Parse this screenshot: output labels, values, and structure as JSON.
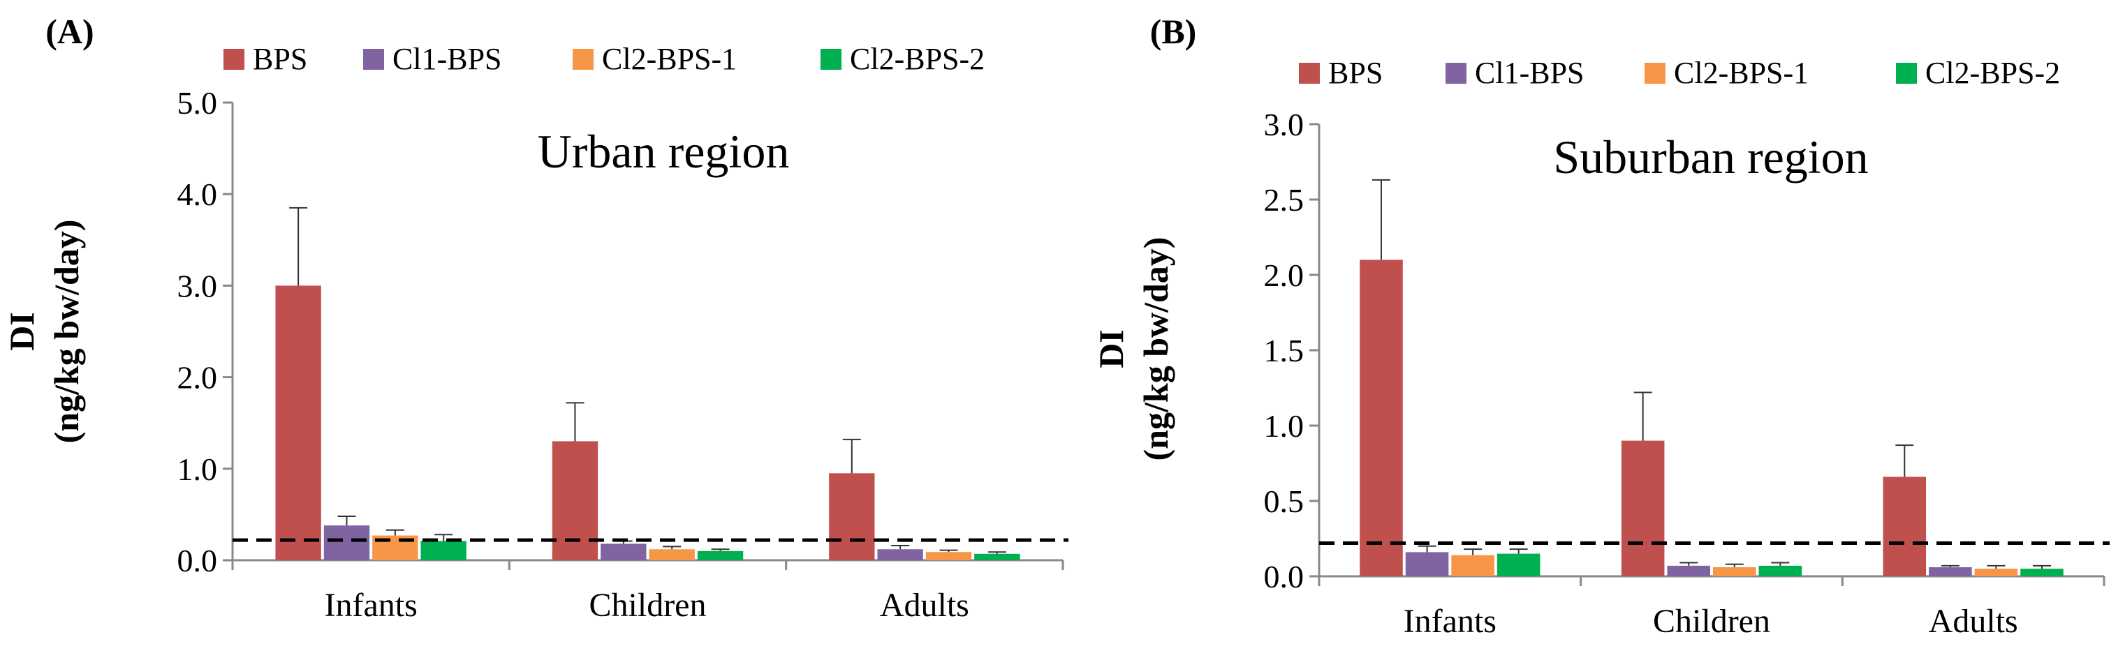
{
  "chart_data": [
    {
      "type": "bar",
      "panel_label": "(A)",
      "title": "Urban region",
      "ylabel_line1": "DI",
      "ylabel_line2": "(ng/kg bw/day)",
      "xlabel": "",
      "categories": [
        "Infants",
        "Children",
        "Adults"
      ],
      "ylim": [
        0,
        5
      ],
      "yticks": [
        "0.0",
        "1.0",
        "2.0",
        "3.0",
        "4.0",
        "5.0"
      ],
      "ytick_values": [
        0,
        1,
        2,
        3,
        4,
        5
      ],
      "reference_line": 0.22,
      "legend_position": "top",
      "series": [
        {
          "name": "BPS",
          "color": "#c0504d",
          "values": [
            3.0,
            1.3,
            0.95
          ],
          "errors": [
            0.85,
            0.42,
            0.37
          ]
        },
        {
          "name": "Cl1-BPS",
          "color": "#8064a2",
          "values": [
            0.38,
            0.18,
            0.12
          ],
          "errors": [
            0.1,
            0.03,
            0.04
          ]
        },
        {
          "name": "Cl2-BPS-1",
          "color": "#f79646",
          "values": [
            0.27,
            0.12,
            0.09
          ],
          "errors": [
            0.06,
            0.03,
            0.02
          ]
        },
        {
          "name": "Cl2-BPS-2",
          "color": "#00b050",
          "values": [
            0.21,
            0.1,
            0.07
          ],
          "errors": [
            0.07,
            0.02,
            0.02
          ]
        }
      ]
    },
    {
      "type": "bar",
      "panel_label": "(B)",
      "title": "Suburban region",
      "ylabel_line1": "DI",
      "ylabel_line2": "(ng/kg bw/day)",
      "xlabel": "",
      "categories": [
        "Infants",
        "Children",
        "Adults"
      ],
      "ylim": [
        0,
        3
      ],
      "yticks": [
        "0.0",
        "0.5",
        "1.0",
        "1.5",
        "2.0",
        "2.5",
        "3.0"
      ],
      "ytick_values": [
        0,
        0.5,
        1,
        1.5,
        2,
        2.5,
        3
      ],
      "reference_line": 0.22,
      "legend_position": "top",
      "series": [
        {
          "name": "BPS",
          "color": "#c0504d",
          "values": [
            2.1,
            0.9,
            0.66
          ],
          "errors": [
            0.53,
            0.32,
            0.21
          ]
        },
        {
          "name": "Cl1-BPS",
          "color": "#8064a2",
          "values": [
            0.16,
            0.07,
            0.06
          ],
          "errors": [
            0.04,
            0.02,
            0.01
          ]
        },
        {
          "name": "Cl2-BPS-1",
          "color": "#f79646",
          "values": [
            0.14,
            0.06,
            0.05
          ],
          "errors": [
            0.04,
            0.02,
            0.02
          ]
        },
        {
          "name": "Cl2-BPS-2",
          "color": "#00b050",
          "values": [
            0.15,
            0.07,
            0.05
          ],
          "errors": [
            0.03,
            0.02,
            0.02
          ]
        }
      ]
    }
  ]
}
